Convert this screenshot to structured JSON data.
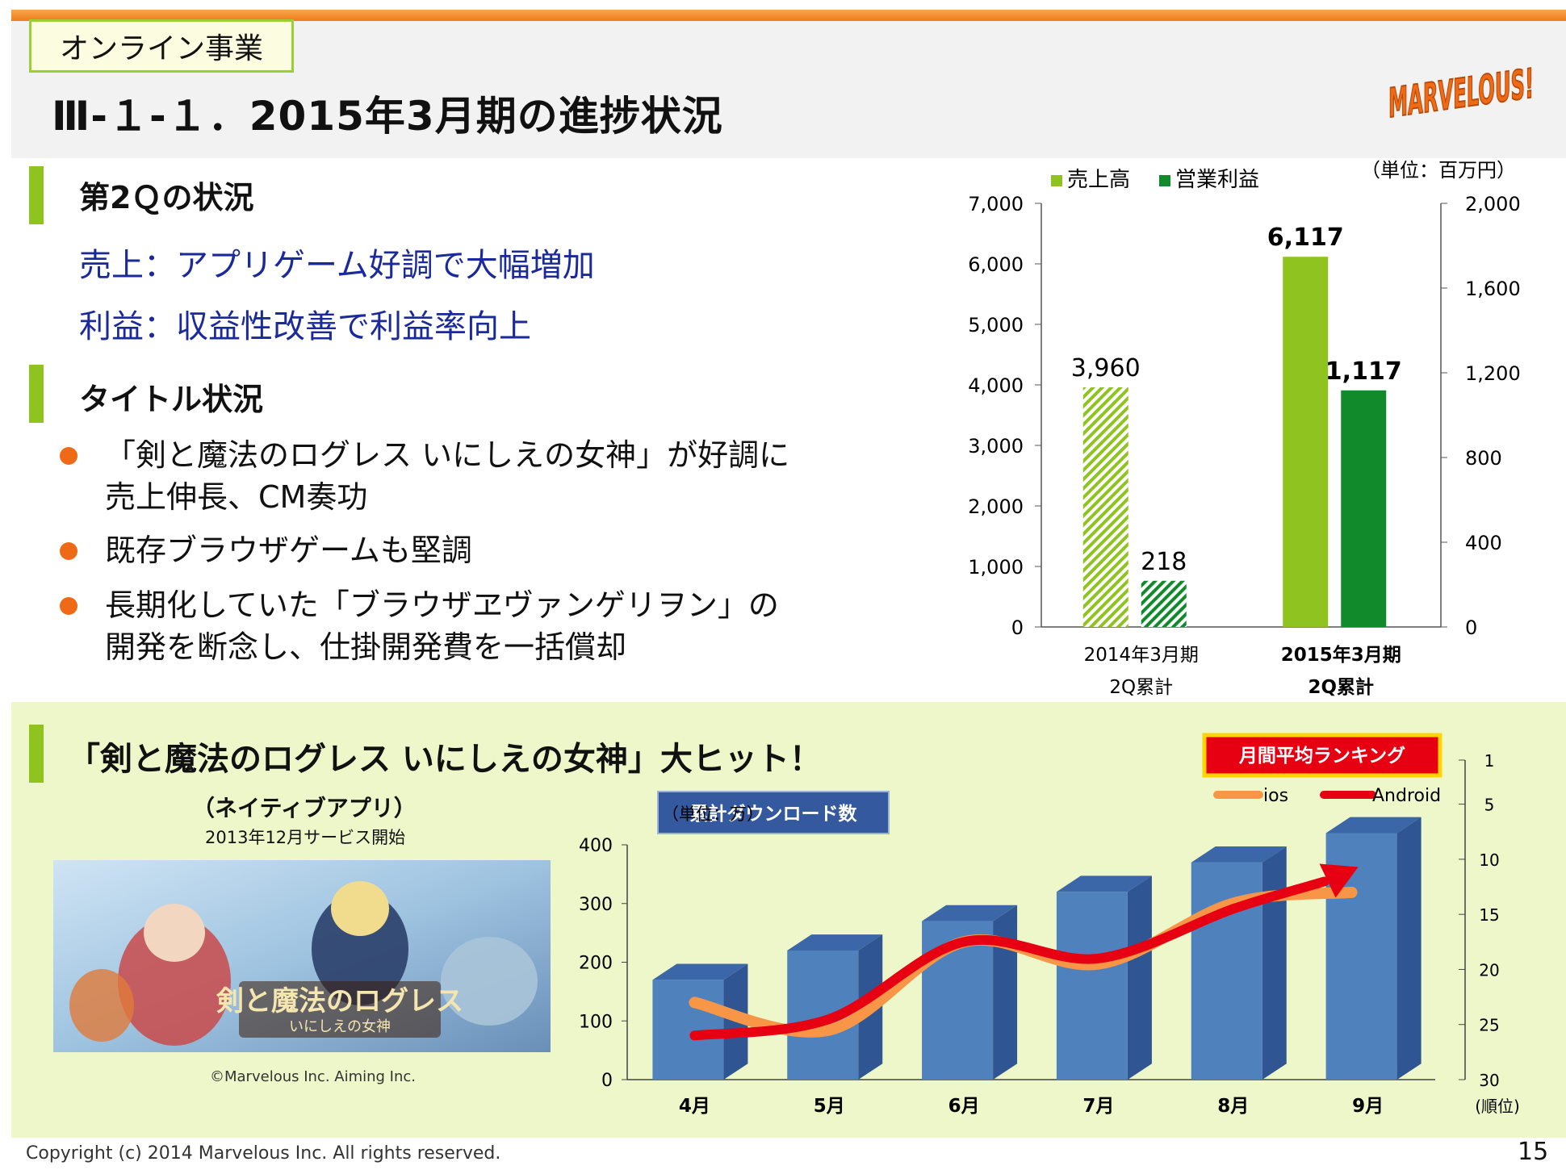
{
  "header": {
    "tag": "オンライン事業",
    "title": "Ⅲ-１-１．2015年3月期の進捗状況",
    "logo": "MARVELOUS!"
  },
  "section1": {
    "heading": "第2Ｑの状況",
    "lines": [
      "売上：アプリゲーム好調で大幅増加",
      "利益：収益性改善で利益率向上"
    ]
  },
  "section2": {
    "heading": "タイトル状況",
    "bullets": [
      [
        "「剣と魔法のログレス いにしえの女神」が好調に",
        "売上伸長、CM奏功"
      ],
      [
        "既存ブラウザゲームも堅調"
      ],
      [
        "長期化していた「ブラウザヱヴァンゲリヲン」の",
        "開発を断念し、仕掛開発費を一括償却"
      ]
    ]
  },
  "section3": {
    "heading": "「剣と魔法のログレス いにしえの女神」大ヒット！",
    "subtitle": "（ネイティブアプリ）",
    "service_start": "2013年12月サービス開始",
    "image_label": "剣と魔法のログレス",
    "image_sublabel": "いにしえの女神",
    "credit": "©Marvelous Inc. Aiming Inc."
  },
  "footer": {
    "copyright": "Copyright (c) 2014 Marvelous Inc. All rights reserved.",
    "page": "15"
  },
  "colors": {
    "sales": "#8fc31f",
    "profit": "#108a2a",
    "orange": "#ee7d1a",
    "download_bar": "#4f81bd",
    "ios_line": "#f79646",
    "android_line": "#e60012"
  },
  "chart_data": [
    {
      "type": "bar",
      "unit": "（単位：百万円）",
      "categories": [
        [
          "2014年3月期",
          "2Q累計"
        ],
        [
          "2015年3月期",
          "2Q累計"
        ]
      ],
      "series": [
        {
          "name": "売上高",
          "axis": "left",
          "values": [
            3960,
            6117
          ],
          "labels": [
            "3,960",
            "6,117"
          ]
        },
        {
          "name": "営業利益",
          "axis": "right",
          "values": [
            218,
            1117
          ],
          "labels": [
            "218",
            "1,117"
          ]
        }
      ],
      "ylim": [
        0,
        7000
      ],
      "yticks": [
        "0",
        "1,000",
        "2,000",
        "3,000",
        "4,000",
        "5,000",
        "6,000",
        "7,000"
      ],
      "y2lim": [
        0,
        2000
      ],
      "y2ticks": [
        "0",
        "400",
        "800",
        "1,200",
        "1,600",
        "2,000"
      ],
      "legend_position": "top"
    },
    {
      "type": "bar",
      "title": "累計ダウンロード数",
      "unit": "（単位：万）",
      "categories": [
        "4月",
        "5月",
        "6月",
        "7月",
        "8月",
        "9月"
      ],
      "series": [
        {
          "name": "累計ダウンロード数",
          "values": [
            170,
            220,
            270,
            320,
            370,
            420
          ]
        },
        {
          "name": "ios",
          "type": "line",
          "axis": "right",
          "values": [
            23,
            25.5,
            17.5,
            19.5,
            14,
            13
          ]
        },
        {
          "name": "Android",
          "type": "line",
          "axis": "right",
          "values": [
            26,
            24.5,
            17.5,
            19,
            14.5,
            11
          ]
        }
      ],
      "ylim": [
        0,
        400
      ],
      "yticks": [
        "0",
        "100",
        "200",
        "300",
        "400"
      ],
      "y2lim": [
        30,
        1
      ],
      "y2ticks": [
        "1",
        "5",
        "10",
        "15",
        "20",
        "25",
        "30"
      ],
      "y2label": "(順位)",
      "ranking_title": "月間平均ランキング",
      "legend_position": "top-right"
    }
  ]
}
